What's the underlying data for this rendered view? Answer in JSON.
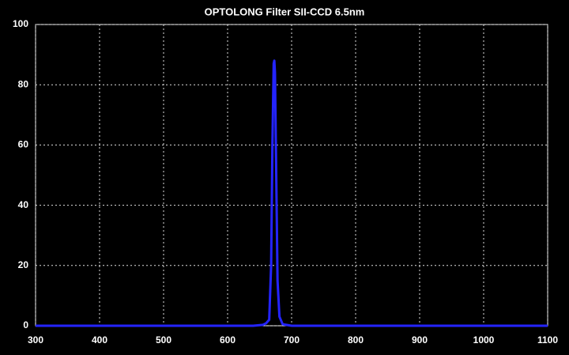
{
  "chart_data": {
    "type": "line",
    "title": "OPTOLONG Filter SII-CCD 6.5nm",
    "x": [
      300,
      640,
      655,
      660,
      665,
      668,
      670,
      672,
      673,
      674,
      676,
      678,
      681,
      686,
      700,
      1100
    ],
    "series": [
      {
        "color": "#2424ff",
        "values": [
          0,
          0,
          0.3,
          0.8,
          2,
          20,
          60,
          87,
          88,
          84,
          50,
          15,
          3,
          0.5,
          0,
          0
        ]
      }
    ],
    "xlim": [
      300,
      1100
    ],
    "xticks": [
      300,
      400,
      500,
      600,
      700,
      800,
      900,
      1000,
      1100
    ],
    "ylim": [
      0,
      100
    ],
    "yticks": [
      0,
      20,
      40,
      60,
      80,
      100
    ],
    "grid": true
  }
}
